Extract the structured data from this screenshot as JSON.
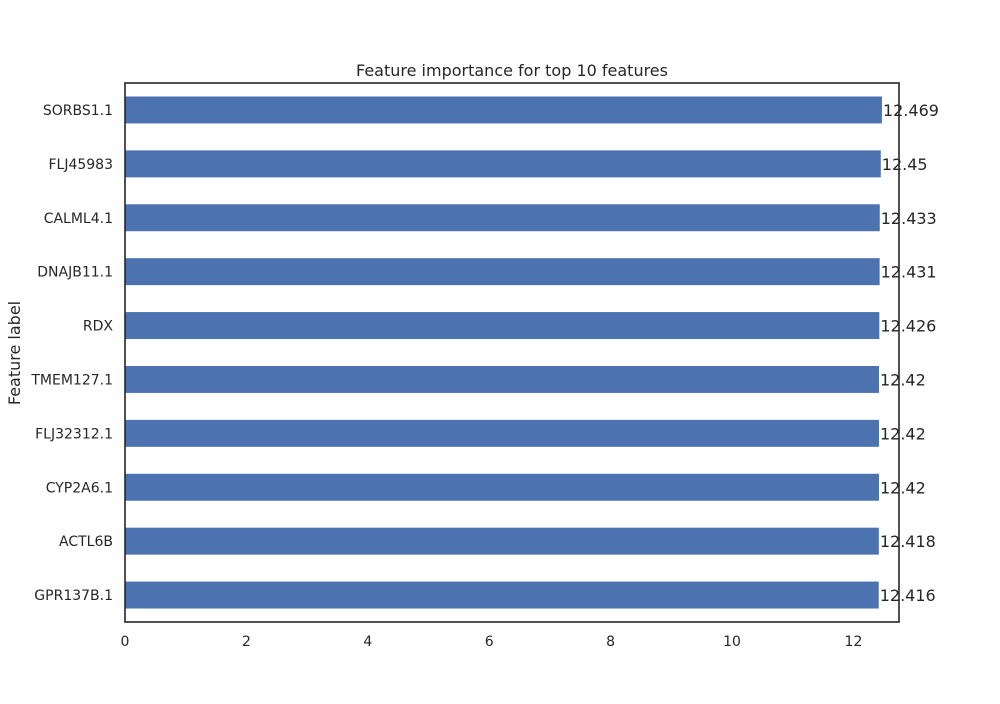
{
  "chart_data": {
    "type": "bar",
    "orientation": "horizontal",
    "title": "Feature importance for top 10 features",
    "xlabel": "",
    "ylabel": "Feature label",
    "categories": [
      "SORBS1.1",
      "FLJ45983",
      "CALML4.1",
      "DNAJB11.1",
      "RDX",
      "TMEM127.1",
      "FLJ32312.1",
      "CYP2A6.1",
      "ACTL6B",
      "GPR137B.1"
    ],
    "values": [
      12.469,
      12.45,
      12.433,
      12.431,
      12.426,
      12.42,
      12.42,
      12.42,
      12.418,
      12.416
    ],
    "value_labels": [
      "12.469",
      "12.45",
      "12.433",
      "12.431",
      "12.426",
      "12.42",
      "12.42",
      "12.42",
      "12.418",
      "12.416"
    ],
    "xlim": [
      0,
      12.75
    ],
    "xticks": [
      0,
      2,
      4,
      6,
      8,
      10,
      12
    ],
    "grid": false,
    "bar_color": "#4c72b0"
  }
}
